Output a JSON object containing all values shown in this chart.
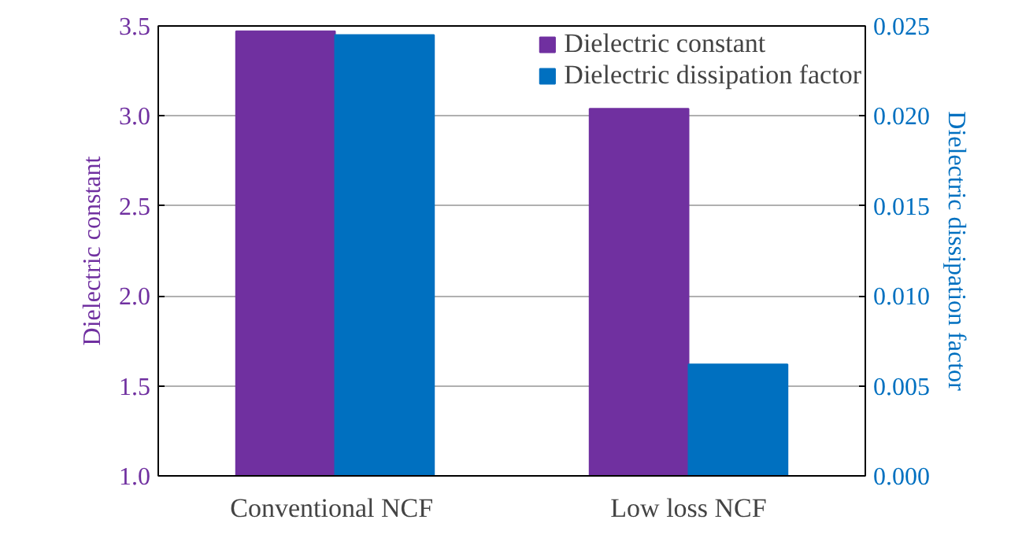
{
  "chart_data": {
    "type": "bar",
    "categories": [
      "Conventional  NCF",
      "Low loss NCF"
    ],
    "ylabel": "Dielectric constant",
    "y2label": "Dielectric dissipation factor",
    "series": [
      {
        "name": "Dielectric constant",
        "color": "#7030a0",
        "values": [
          3.47,
          3.04
        ]
      },
      {
        "name": "Dielectric dissipation factor",
        "color": "#0070c0",
        "values": [
          0.0245,
          0.0062
        ],
        "axis": "y2"
      }
    ],
    "ylim": [
      1.0,
      3.5
    ],
    "yticks": [
      {
        "value": 1.0,
        "label": "1.0"
      },
      {
        "value": 1.5,
        "label": "1.5"
      },
      {
        "value": 2.0,
        "label": "2.0"
      },
      {
        "value": 2.5,
        "label": "2.5"
      },
      {
        "value": 3.0,
        "label": "3.0"
      },
      {
        "value": 3.5,
        "label": "3.5"
      }
    ],
    "y2lim": [
      0,
      0.025
    ],
    "y2ticks": [
      {
        "value": 0,
        "label": "0.000"
      },
      {
        "value": 0.005,
        "label": "0.005"
      },
      {
        "value": 0.01,
        "label": "0.010"
      },
      {
        "value": 0.015,
        "label": "0.015"
      },
      {
        "value": 0.02,
        "label": "0.020"
      },
      {
        "value": 0.025,
        "label": "0.025"
      }
    ],
    "grid": "y",
    "legend": "top right"
  }
}
